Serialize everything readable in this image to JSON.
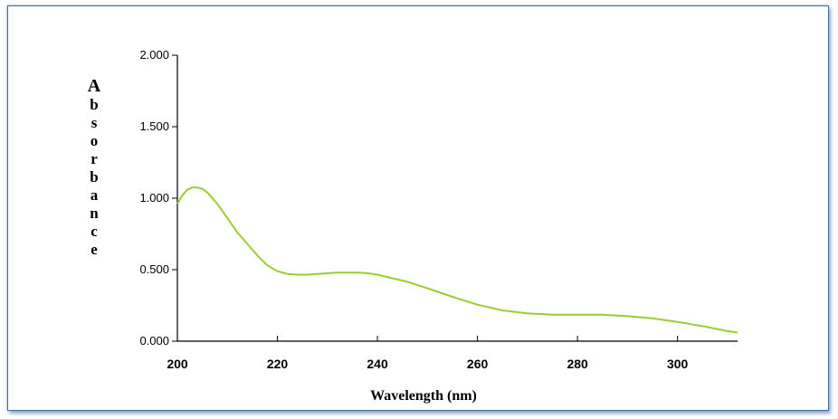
{
  "chart_data": {
    "type": "line",
    "title": "",
    "xlabel": "Wavelength (nm)",
    "ylabel": "Absorbance",
    "xlim": [
      200,
      312
    ],
    "ylim": [
      0,
      2
    ],
    "x_ticks": [
      "200",
      "220",
      "240",
      "260",
      "280",
      "300"
    ],
    "y_ticks": [
      "0.000",
      "0.500",
      "1.000",
      "1.500",
      "2.000"
    ],
    "grid": false,
    "legend": "none",
    "series_color": "#9acd32",
    "axis_color": "#000000",
    "series": [
      {
        "x": [
          200,
          201,
          202,
          203,
          204,
          205,
          206,
          208,
          210,
          212,
          214,
          216,
          218,
          220,
          222,
          224,
          226,
          228,
          230,
          232,
          234,
          236,
          238,
          240,
          243,
          246,
          250,
          255,
          260,
          265,
          270,
          275,
          280,
          285,
          290,
          295,
          300,
          305,
          310,
          312
        ],
        "y": [
          0.96,
          1.02,
          1.06,
          1.075,
          1.075,
          1.065,
          1.04,
          0.96,
          0.86,
          0.76,
          0.68,
          0.6,
          0.53,
          0.49,
          0.47,
          0.465,
          0.465,
          0.47,
          0.475,
          0.48,
          0.48,
          0.48,
          0.475,
          0.465,
          0.44,
          0.415,
          0.37,
          0.31,
          0.255,
          0.215,
          0.195,
          0.185,
          0.185,
          0.185,
          0.175,
          0.16,
          0.135,
          0.105,
          0.07,
          0.06
        ]
      }
    ]
  }
}
